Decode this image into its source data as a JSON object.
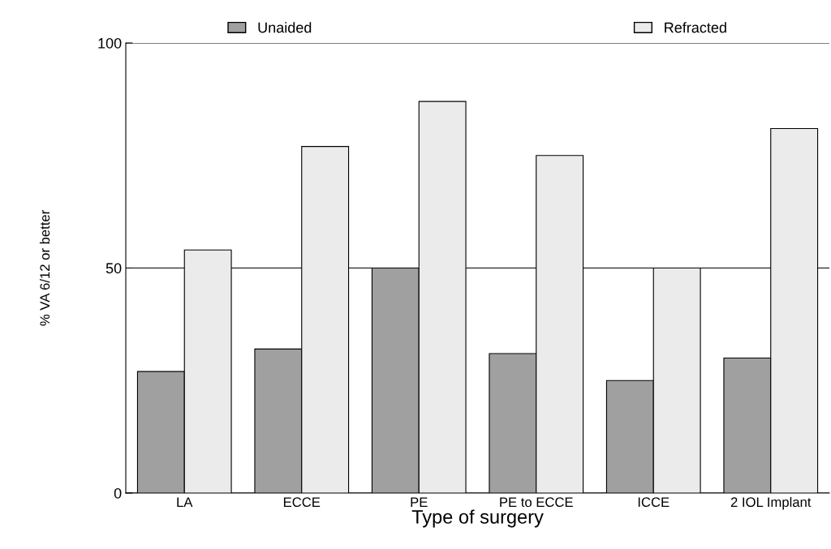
{
  "chart_data": {
    "type": "bar",
    "xlabel": "Type of surgery",
    "ylabel": "% VA 6/12 or better",
    "categories": [
      "LA",
      "ECCE",
      "PE",
      "PE to ECCE",
      "ICCE",
      "2 IOL Implant"
    ],
    "series": [
      {
        "name": "Unaided",
        "color": "#a0a0a0",
        "values": [
          27,
          32,
          50,
          31,
          25,
          30
        ]
      },
      {
        "name": "Refracted",
        "color": "#ebebeb",
        "values": [
          54,
          77,
          87,
          75,
          50,
          81
        ]
      }
    ],
    "ylim": [
      0,
      100
    ],
    "yticks": [
      0,
      50,
      100
    ],
    "grid": "y",
    "legend": "top"
  }
}
